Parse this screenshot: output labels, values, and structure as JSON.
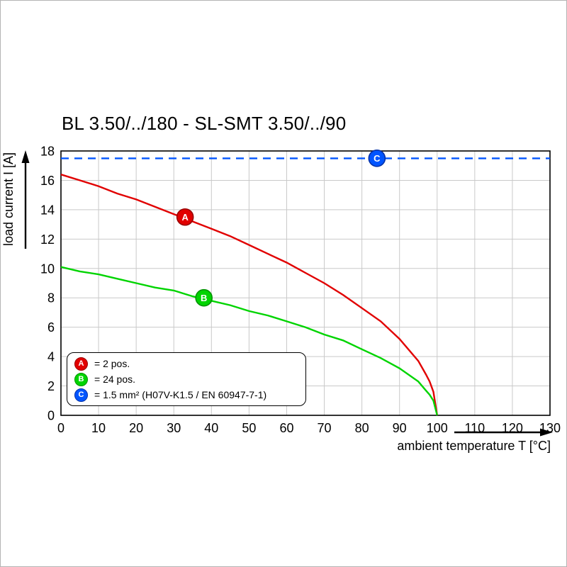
{
  "title": "BL 3.50/../180 - SL-SMT 3.50/../90",
  "colors": {
    "red": "#e10000",
    "red_dark": "#990000",
    "green": "#00d400",
    "green_dark": "#009300",
    "blue": "#0055ff",
    "blue_dark": "#0030a8",
    "grid": "#c9c9c9",
    "axis": "#000000"
  },
  "axes": {
    "x_label": "ambient temperature T [°C]",
    "y_label": "load current I [A]",
    "x_ticks": [
      0,
      10,
      20,
      30,
      40,
      50,
      60,
      70,
      80,
      90,
      100,
      110,
      120,
      130
    ],
    "y_ticks": [
      0,
      2,
      4,
      6,
      8,
      10,
      12,
      14,
      16,
      18
    ],
    "x_range": [
      0,
      130
    ],
    "y_range": [
      0,
      18
    ]
  },
  "chart_data": {
    "type": "line",
    "title": "BL 3.50/../180 - SL-SMT 3.50/../90",
    "xlabel": "ambient temperature T [°C]",
    "ylabel": "load current I [A]",
    "xlim": [
      0,
      130
    ],
    "ylim": [
      0,
      18
    ],
    "grid": true,
    "series": [
      {
        "name": "A",
        "label": "2 pos.",
        "color_key": "red",
        "style": "solid",
        "marker": {
          "t": 33,
          "i": 13.5
        },
        "points": [
          [
            0,
            16.4
          ],
          [
            5,
            16.0
          ],
          [
            10,
            15.6
          ],
          [
            15,
            15.1
          ],
          [
            20,
            14.7
          ],
          [
            25,
            14.2
          ],
          [
            30,
            13.7
          ],
          [
            35,
            13.2
          ],
          [
            40,
            12.7
          ],
          [
            45,
            12.2
          ],
          [
            50,
            11.6
          ],
          [
            55,
            11.0
          ],
          [
            60,
            10.4
          ],
          [
            65,
            9.7
          ],
          [
            70,
            9.0
          ],
          [
            75,
            8.2
          ],
          [
            80,
            7.3
          ],
          [
            85,
            6.4
          ],
          [
            90,
            5.2
          ],
          [
            95,
            3.7
          ],
          [
            97,
            2.8
          ],
          [
            98,
            2.3
          ],
          [
            99,
            1.6
          ],
          [
            100,
            0
          ]
        ]
      },
      {
        "name": "B",
        "label": "24 pos.",
        "color_key": "green",
        "style": "solid",
        "marker": {
          "t": 38,
          "i": 8.0
        },
        "points": [
          [
            0,
            10.1
          ],
          [
            5,
            9.8
          ],
          [
            10,
            9.6
          ],
          [
            15,
            9.3
          ],
          [
            20,
            9.0
          ],
          [
            25,
            8.7
          ],
          [
            30,
            8.5
          ],
          [
            35,
            8.1
          ],
          [
            40,
            7.8
          ],
          [
            45,
            7.5
          ],
          [
            50,
            7.1
          ],
          [
            55,
            6.8
          ],
          [
            60,
            6.4
          ],
          [
            65,
            6.0
          ],
          [
            70,
            5.5
          ],
          [
            75,
            5.1
          ],
          [
            80,
            4.5
          ],
          [
            85,
            3.9
          ],
          [
            90,
            3.2
          ],
          [
            95,
            2.3
          ],
          [
            97,
            1.7
          ],
          [
            98,
            1.4
          ],
          [
            99,
            1.0
          ],
          [
            100,
            0
          ]
        ]
      },
      {
        "name": "C",
        "label": "1.5 mm² (H07V-K1.5 / EN 60947-7-1)",
        "color_key": "blue",
        "style": "dashed",
        "marker": {
          "t": 84,
          "i": 17.5
        },
        "points": [
          [
            0,
            17.5
          ],
          [
            130,
            17.5
          ]
        ]
      }
    ]
  },
  "legend": {
    "items": [
      {
        "key": "A",
        "color_key": "red",
        "text": "= 2 pos."
      },
      {
        "key": "B",
        "color_key": "green",
        "text": "= 24 pos."
      },
      {
        "key": "C",
        "color_key": "blue",
        "text": "= 1.5 mm² (H07V-K1.5 / EN 60947-7-1)"
      }
    ]
  }
}
